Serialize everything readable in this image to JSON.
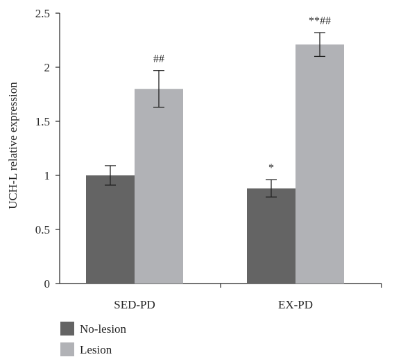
{
  "chart_data": {
    "type": "bar",
    "categories": [
      "SED-PD",
      "EX-PD"
    ],
    "series": [
      {
        "name": "No-lesion",
        "color": "#646464",
        "values": [
          1.0,
          0.88
        ],
        "errors": [
          0.09,
          0.08
        ],
        "annotations": [
          "",
          "*"
        ]
      },
      {
        "name": "Lesion",
        "color": "#b1b2b6",
        "values": [
          1.8,
          2.21
        ],
        "errors": [
          0.17,
          0.11
        ],
        "annotations": [
          "##",
          "**##"
        ]
      }
    ],
    "xlabel": "",
    "ylabel": "UCH-L relative expression",
    "ylim": [
      0,
      2.5
    ],
    "yticks": [
      "0",
      "0.5",
      "1",
      "1.5",
      "2",
      "2.5"
    ],
    "grid": false,
    "legend_position": "bottom-left"
  }
}
